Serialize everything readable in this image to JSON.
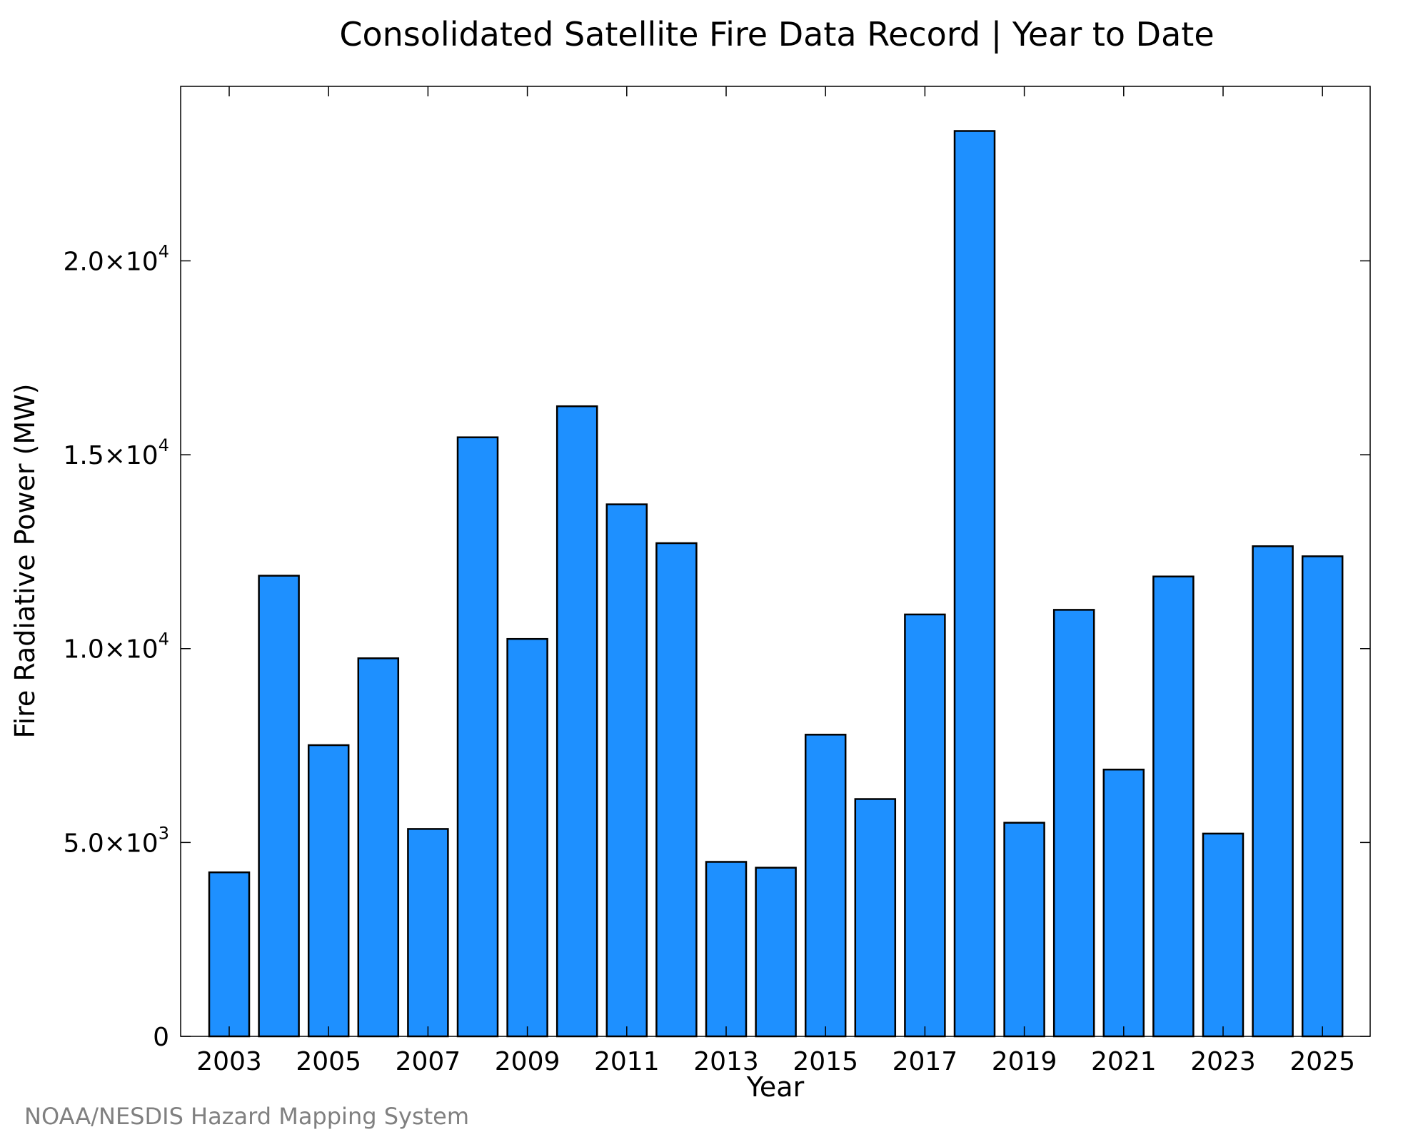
{
  "chart_data": {
    "type": "bar",
    "title": "Consolidated Satellite Fire Data Record | Year to Date",
    "xlabel": "Year",
    "ylabel": "Fire Radiative Power (MW)",
    "categories": [
      "2003",
      "2004",
      "2005",
      "2006",
      "2007",
      "2008",
      "2009",
      "2010",
      "2011",
      "2012",
      "2013",
      "2014",
      "2015",
      "2016",
      "2017",
      "2018",
      "2019",
      "2020",
      "2021",
      "2022",
      "2023",
      "2024",
      "2025"
    ],
    "values": [
      4230,
      11880,
      7510,
      9750,
      5350,
      15450,
      10250,
      16250,
      13720,
      12720,
      4500,
      4350,
      7780,
      6120,
      10880,
      23350,
      5510,
      11000,
      6880,
      11860,
      5230,
      12640,
      12380
    ],
    "ylim": [
      0,
      24500
    ],
    "yticks": [
      {
        "value": 0,
        "mantissa": "0",
        "exp": ""
      },
      {
        "value": 5000,
        "mantissa": "5.0×10",
        "exp": "3"
      },
      {
        "value": 10000,
        "mantissa": "1.0×10",
        "exp": "4"
      },
      {
        "value": 15000,
        "mantissa": "1.5×10",
        "exp": "4"
      },
      {
        "value": 20000,
        "mantissa": "2.0×10",
        "exp": "4"
      }
    ],
    "xtick_labels": [
      "2003",
      "2005",
      "2007",
      "2009",
      "2011",
      "2013",
      "2015",
      "2017",
      "2019",
      "2021",
      "2023",
      "2025"
    ],
    "bar_color": "#1E90FF",
    "edge_color": "#000000",
    "grid": false
  },
  "credit": "NOAA/NESDIS Hazard Mapping System"
}
